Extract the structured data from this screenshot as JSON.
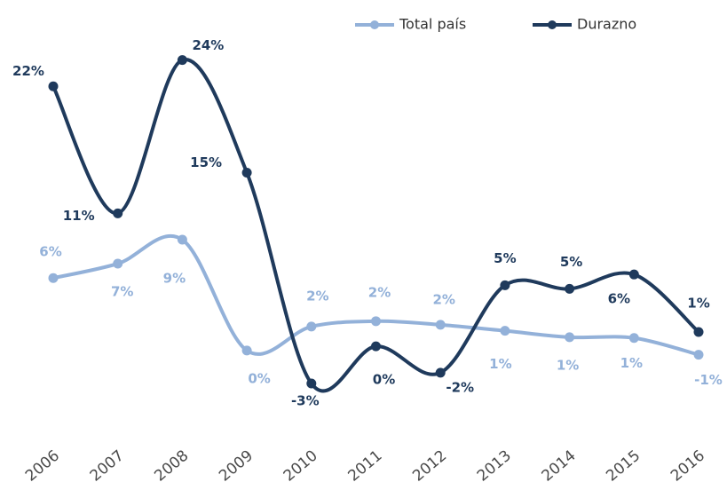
{
  "chart_data": {
    "type": "line",
    "categories": [
      "2006",
      "2007",
      "2008",
      "2009",
      "2010",
      "2011",
      "2012",
      "2013",
      "2014",
      "2015",
      "2016"
    ],
    "series": [
      {
        "name": "Total país",
        "color": "#93b1d9",
        "values": [
          5.8,
          7.0,
          9.0,
          -0.25,
          1.75,
          2.2,
          1.9,
          1.4,
          0.86,
          0.8,
          -0.6
        ],
        "value_labels": [
          "6%",
          "7%",
          "9%",
          "0%",
          "2%",
          "2%",
          "2%",
          "1%",
          "1%",
          "1%",
          "-1%"
        ]
      },
      {
        "name": "Durazno",
        "color": "#1f3a5c",
        "values": [
          21.8,
          11.2,
          24.0,
          14.6,
          -3.0,
          0.1,
          -2.1,
          5.2,
          4.9,
          6.1,
          1.3
        ],
        "value_labels": [
          "22%",
          "11%",
          "24%",
          "15%",
          "-3%",
          "0%",
          "-2%",
          "5%",
          "5%",
          "6%",
          "1%"
        ]
      }
    ],
    "ylim": [
      -5,
      26
    ],
    "legend": "top-right"
  }
}
